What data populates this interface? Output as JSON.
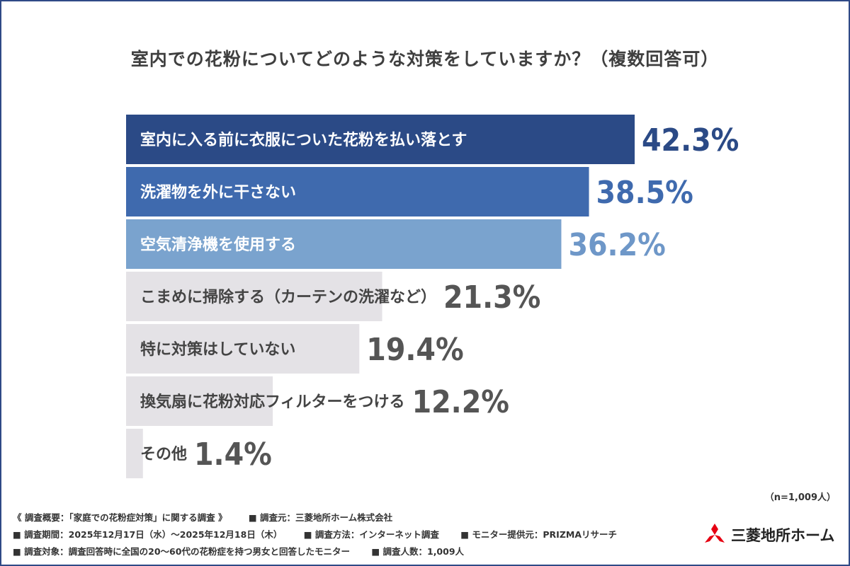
{
  "title": "室内での花粉についてどのような対策をしていますか？（複数回答可）",
  "chart_data": {
    "type": "bar",
    "orientation": "horizontal",
    "title": "室内での花粉についてどのような対策をしていますか？（複数回答可）",
    "categories": [
      "室内に入る前に衣服についた花粉を払い落とす",
      "洗濯物を外に干さない",
      "空気清浄機を使用する",
      "こまめに掃除する（カーテンの洗濯など）",
      "特に対策はしていない",
      "換気扇に花粉対応フィルターをつける",
      "その他"
    ],
    "values": [
      42.3,
      38.5,
      36.2,
      21.3,
      19.4,
      12.2,
      1.4
    ],
    "value_labels": [
      "42.3%",
      "38.5%",
      "36.2%",
      "21.3%",
      "19.4%",
      "12.2%",
      "1.4%"
    ],
    "colors": [
      "#2b4a86",
      "#3f6aae",
      "#7aa3ce",
      "#e4e2e6",
      "#e4e2e6",
      "#e4e2e6",
      "#e4e2e6"
    ],
    "value_colors": [
      "#2b4a86",
      "#3f6aae",
      "#6e97c8",
      "#555555",
      "#555555",
      "#555555",
      "#555555"
    ],
    "label_colors": [
      "#ffffff",
      "#ffffff",
      "#ffffff",
      "#444444",
      "#444444",
      "#444444",
      "#444444"
    ],
    "xlim": [
      0,
      42.3
    ],
    "grid": false,
    "legend": "none"
  },
  "sample_size": "（n=1,009人）",
  "notes": {
    "row1": [
      "《 調査概要：「家庭での花粉症対策」に関する調査 》",
      "■ 調査元：三菱地所ホーム株式会社"
    ],
    "row2": [
      "■ 調査期間：2025年12月17日（水）～2025年12月18日（木）",
      "■ 調査方法：インターネット調査",
      "■ モニター提供元：PRIZMAリサーチ"
    ],
    "row3": [
      "■ 調査対象：調査回答時に全国の20～60代の花粉症を持つ男女と回答したモニター",
      "■ 調査人数：1,009人"
    ]
  },
  "logo": {
    "text": "三菱地所ホーム",
    "icon": "mitsubishi-three-diamonds-icon",
    "color": "#e60012"
  }
}
